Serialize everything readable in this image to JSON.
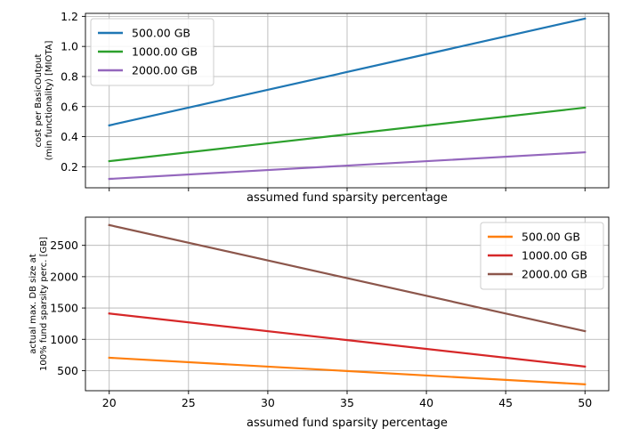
{
  "chart_data": [
    {
      "type": "line",
      "xlabel": "assumed fund sparsity percentage",
      "ylabel_lines": [
        "cost per BasicOutput",
        "(min functionality) [MIOTA]"
      ],
      "xlim": [
        18.5,
        51.5
      ],
      "ylim": [
        0.06,
        1.22
      ],
      "x_ticks": [
        20,
        25,
        30,
        35,
        40,
        45,
        50
      ],
      "x_tick_labels": [],
      "y_ticks": [
        0.2,
        0.4,
        0.6,
        0.8,
        1.0,
        1.2
      ],
      "y_tick_labels": [
        "0.2",
        "0.4",
        "0.6",
        "0.8",
        "1.0",
        "1.2"
      ],
      "grid": true,
      "legend_position": "top-left",
      "x": [
        20,
        50
      ],
      "series": [
        {
          "name": "500.00 GB",
          "color": "#1f77b4",
          "values": [
            0.475,
            1.185
          ]
        },
        {
          "name": "1000.00 GB",
          "color": "#2ca02c",
          "values": [
            0.237,
            0.593
          ]
        },
        {
          "name": "2000.00 GB",
          "color": "#9467bd",
          "values": [
            0.119,
            0.296
          ]
        }
      ]
    },
    {
      "type": "line",
      "xlabel": "assumed fund sparsity percentage",
      "ylabel_lines": [
        "actual max. DB size at",
        "100% fund sparsity perc. [GB]"
      ],
      "xlim": [
        18.5,
        51.5
      ],
      "ylim": [
        180,
        2950
      ],
      "x_ticks": [
        20,
        25,
        30,
        35,
        40,
        45,
        50
      ],
      "x_tick_labels": [
        "20",
        "25",
        "30",
        "35",
        "40",
        "45",
        "50"
      ],
      "y_ticks": [
        500,
        1000,
        1500,
        2000,
        2500
      ],
      "y_tick_labels": [
        "500",
        "1000",
        "1500",
        "2000",
        "2500"
      ],
      "grid": true,
      "legend_position": "top-right",
      "x": [
        20,
        50
      ],
      "series": [
        {
          "name": "500.00 GB",
          "color": "#ff7f0e",
          "values": [
            706,
            282
          ]
        },
        {
          "name": "1000.00 GB",
          "color": "#d62728",
          "values": [
            1412,
            565
          ]
        },
        {
          "name": "2000.00 GB",
          "color": "#8c564b",
          "values": [
            2824,
            1130
          ]
        }
      ]
    }
  ]
}
